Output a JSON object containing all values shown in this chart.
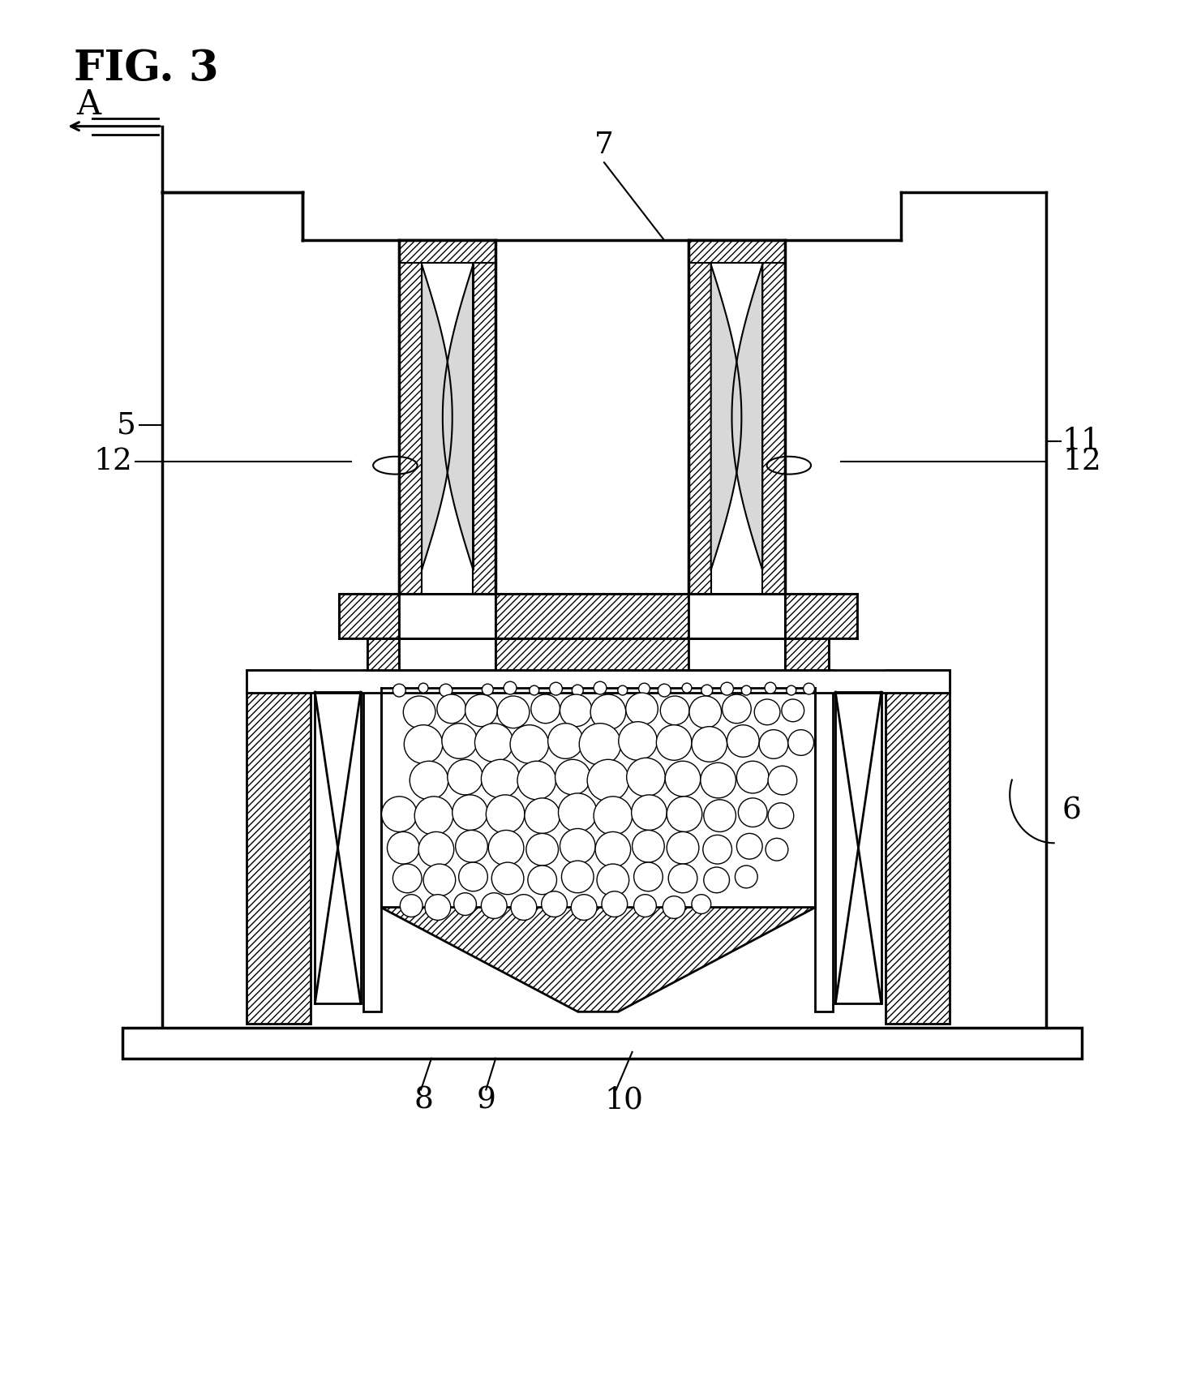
{
  "title": "FIG. 3",
  "background_color": "#ffffff",
  "line_color": "#000000",
  "label_A": "A",
  "label_7": "7",
  "label_5": "5",
  "label_6": "6",
  "label_11": "11",
  "label_12_left": "12",
  "label_12_right": "12",
  "label_8": "8",
  "label_9": "9",
  "label_10": "10"
}
